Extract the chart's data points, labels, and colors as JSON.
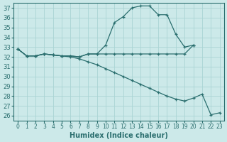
{
  "title": "",
  "xlabel": "Humidex (Indice chaleur)",
  "ylabel": "",
  "background_color": "#cce9e9",
  "grid_color": "#aad4d4",
  "line_color": "#2a6e6e",
  "xlim": [
    -0.5,
    23.5
  ],
  "ylim": [
    25.5,
    37.5
  ],
  "yticks": [
    26,
    27,
    28,
    29,
    30,
    31,
    32,
    33,
    34,
    35,
    36,
    37
  ],
  "xticks": [
    0,
    1,
    2,
    3,
    4,
    5,
    6,
    7,
    8,
    9,
    10,
    11,
    12,
    13,
    14,
    15,
    16,
    17,
    18,
    19,
    20,
    21,
    22,
    23
  ],
  "series1_x": [
    0,
    1,
    2,
    3,
    4,
    5,
    6,
    7,
    8,
    9,
    10,
    11,
    12,
    13,
    14,
    15,
    16,
    17,
    18,
    19,
    20
  ],
  "series1_y": [
    32.8,
    32.1,
    32.1,
    32.3,
    32.2,
    32.1,
    32.1,
    32.0,
    32.3,
    32.3,
    32.3,
    32.3,
    32.3,
    32.3,
    32.3,
    32.3,
    32.3,
    32.3,
    32.3,
    32.3,
    33.2
  ],
  "series2_x": [
    0,
    1,
    2,
    3,
    4,
    5,
    6,
    7,
    8,
    9,
    10,
    11,
    12,
    13,
    14,
    15,
    16,
    17,
    18,
    19,
    20
  ],
  "series2_y": [
    32.8,
    32.1,
    32.1,
    32.3,
    32.2,
    32.1,
    32.1,
    32.0,
    32.3,
    32.3,
    33.2,
    35.5,
    36.1,
    37.0,
    37.2,
    37.2,
    36.3,
    36.3,
    34.3,
    33.0,
    33.2
  ],
  "series3_x": [
    0,
    1,
    2,
    3,
    4,
    5,
    6,
    7,
    8,
    9,
    10,
    11,
    12,
    13,
    14,
    15,
    16,
    17,
    18,
    19,
    20,
    21,
    22,
    23
  ],
  "series3_y": [
    32.8,
    32.1,
    32.1,
    32.3,
    32.2,
    32.1,
    32.0,
    31.8,
    31.5,
    31.2,
    30.8,
    30.4,
    30.0,
    29.6,
    29.2,
    28.8,
    28.4,
    28.0,
    27.7,
    27.5,
    27.8,
    28.2,
    26.1,
    26.3
  ]
}
